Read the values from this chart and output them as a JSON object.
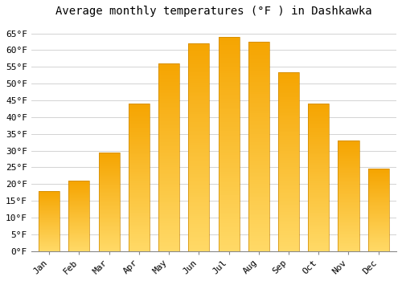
{
  "title": "Average monthly temperatures (°F ) in Dashkawka",
  "months": [
    "Jan",
    "Feb",
    "Mar",
    "Apr",
    "May",
    "Jun",
    "Jul",
    "Aug",
    "Sep",
    "Oct",
    "Nov",
    "Dec"
  ],
  "values": [
    18,
    21,
    29.5,
    44,
    56,
    62,
    64,
    62.5,
    53.5,
    44,
    33,
    24.5
  ],
  "bar_color_top": "#F5A400",
  "bar_color_bottom": "#FFD966",
  "ylim": [
    0,
    68
  ],
  "yticks": [
    0,
    5,
    10,
    15,
    20,
    25,
    30,
    35,
    40,
    45,
    50,
    55,
    60,
    65
  ],
  "ytick_labels": [
    "0°F",
    "5°F",
    "10°F",
    "15°F",
    "20°F",
    "25°F",
    "30°F",
    "35°F",
    "40°F",
    "45°F",
    "50°F",
    "55°F",
    "60°F",
    "65°F"
  ],
  "background_color": "#FFFFFF",
  "grid_color": "#CCCCCC",
  "title_fontsize": 10,
  "tick_fontsize": 8,
  "font_family": "monospace",
  "bar_width": 0.7,
  "n_gradient_steps": 100
}
